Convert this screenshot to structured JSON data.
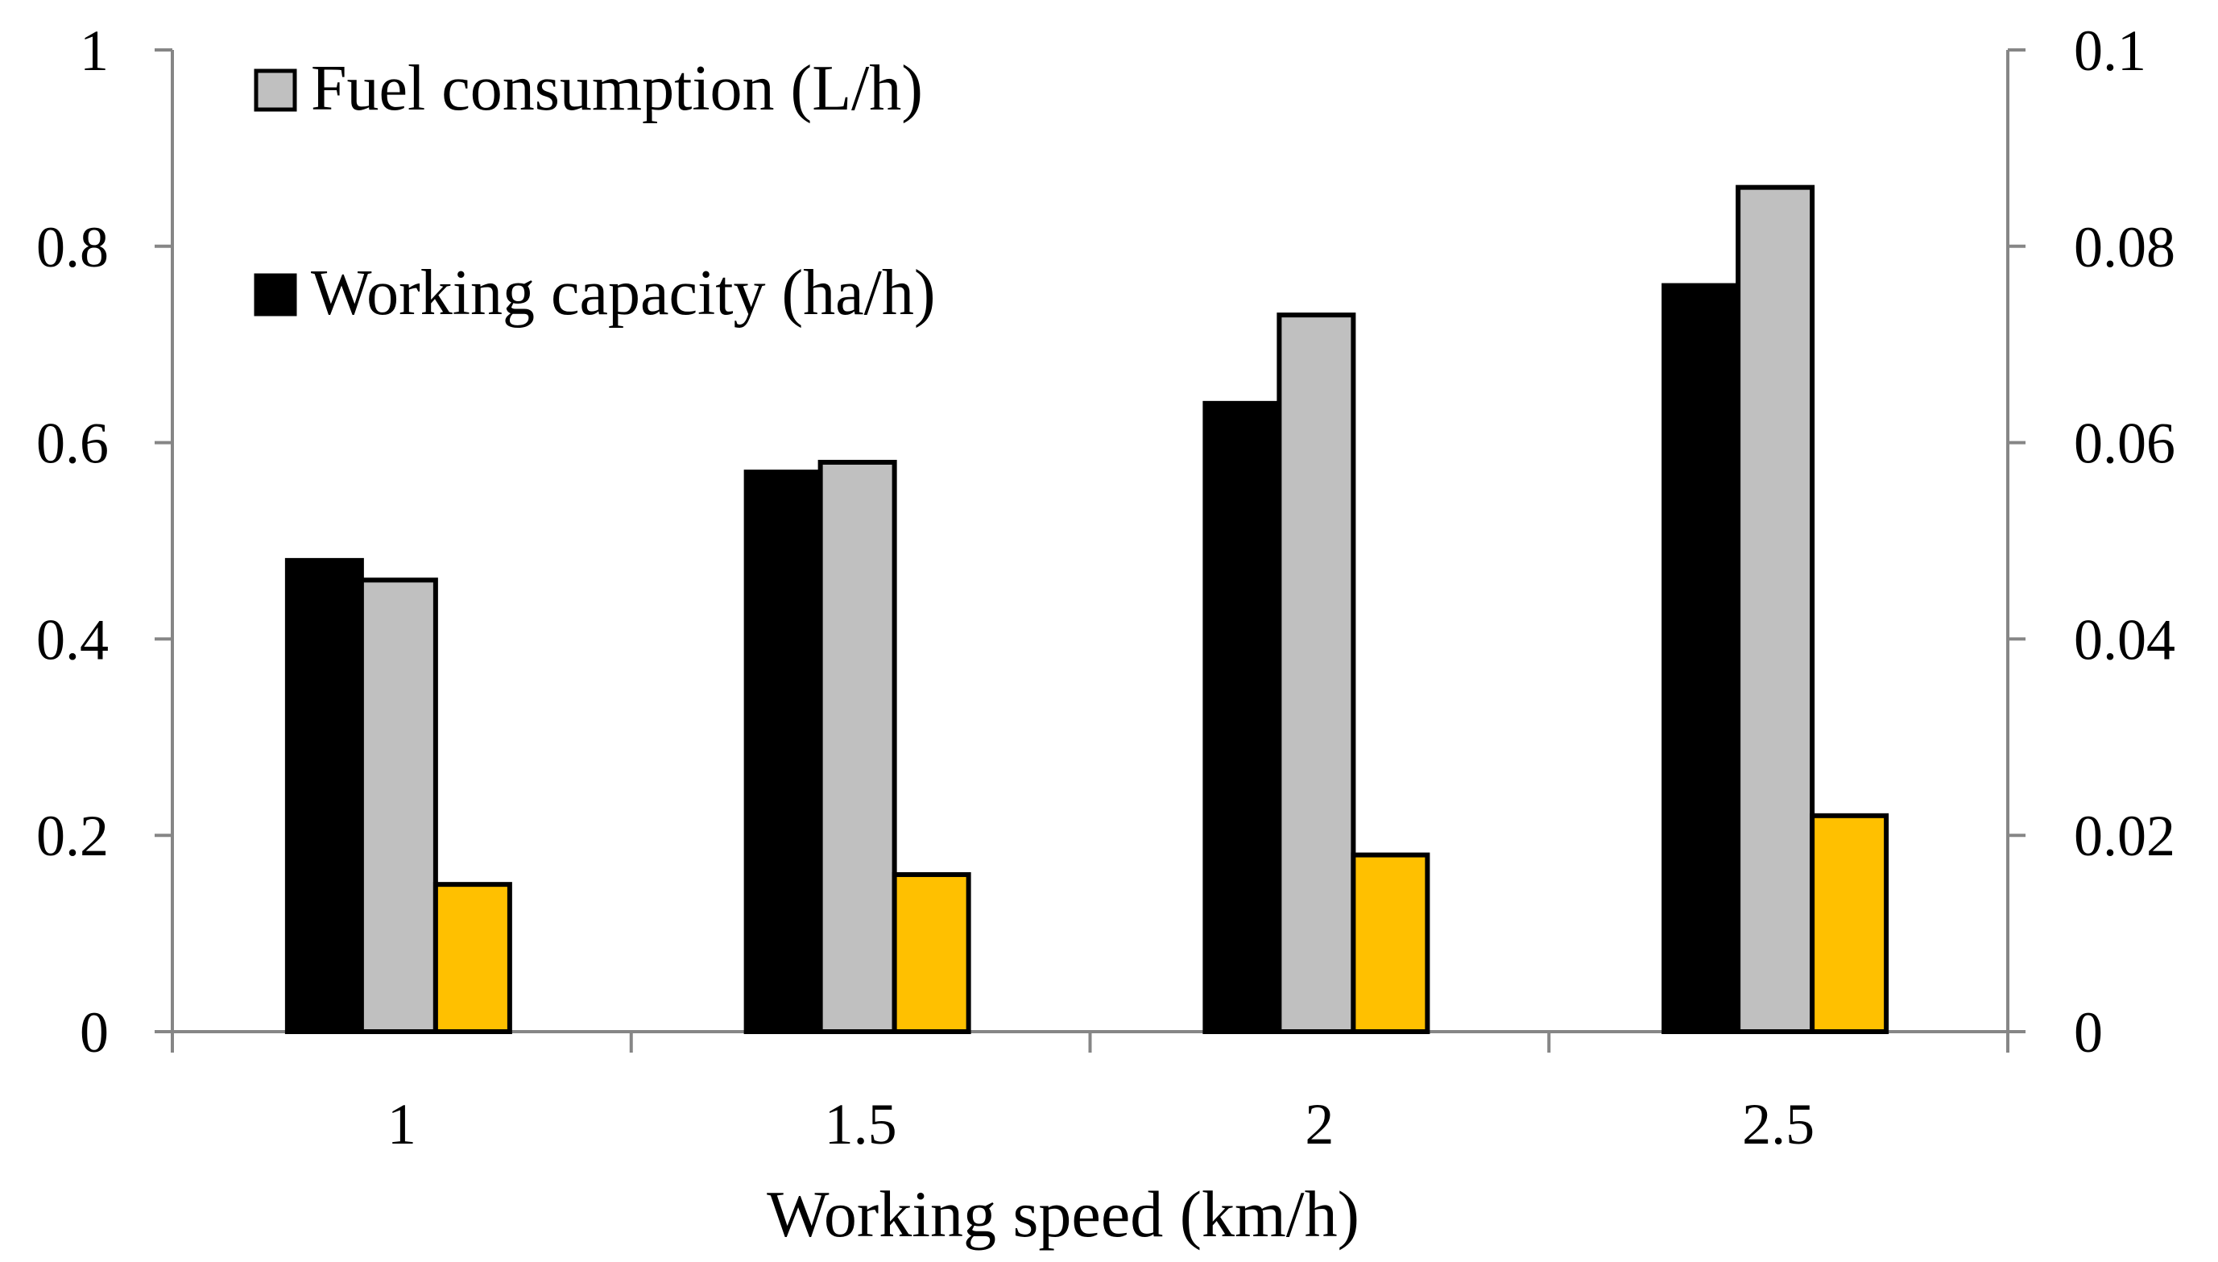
{
  "chart_data": {
    "type": "bar",
    "title": "",
    "xlabel": "Working speed (km/h)",
    "ylabel": "",
    "categories": [
      "1",
      "1.5",
      "2",
      "2.5"
    ],
    "ylim": [
      0,
      1
    ],
    "y2lim": [
      0,
      0.1
    ],
    "yticks": [
      "0",
      "0.2",
      "0.4",
      "0.6",
      "0.8",
      "1"
    ],
    "y2ticks": [
      "0",
      "0.02",
      "0.04",
      "0.06",
      "0.08",
      "0.1"
    ],
    "grid": false,
    "legend_position": "top-left",
    "series": [
      {
        "name": "Working capacity (ha/h)",
        "axis": "left",
        "color": "#000000",
        "values": [
          0.48,
          0.57,
          0.64,
          0.76
        ],
        "in_legend": true
      },
      {
        "name": "Fuel consumption (L/h)",
        "axis": "left",
        "color": "#c0c0c0",
        "values": [
          0.46,
          0.58,
          0.73,
          0.86
        ],
        "in_legend": true
      },
      {
        "name": "",
        "axis": "right",
        "color": "#ffc000",
        "values": [
          0.015,
          0.016,
          0.018,
          0.022
        ],
        "in_legend": false
      }
    ],
    "legend": [
      {
        "label": "Fuel consumption (L/h)",
        "color": "#c0c0c0"
      },
      {
        "label": "Working capacity (ha/h)",
        "color": "#000000"
      }
    ]
  }
}
